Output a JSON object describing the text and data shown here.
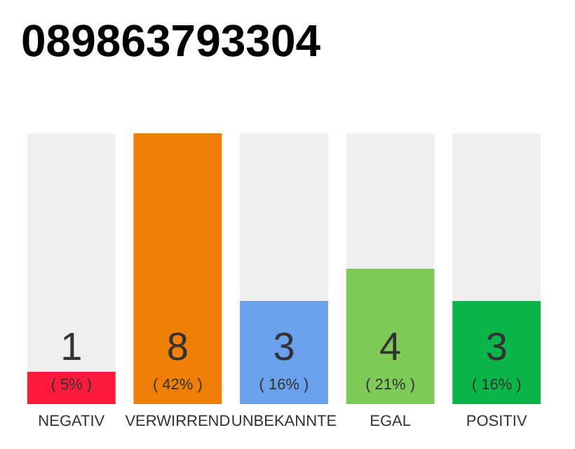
{
  "chart_data": {
    "type": "bar",
    "title": "089863793304",
    "categories": [
      "NEGATIV",
      "VERWIRREND",
      "UNBEKANNTE",
      "EGAL",
      "POSITIV"
    ],
    "values": [
      5,
      42,
      16,
      21,
      16
    ],
    "colors": [
      "#ff1a3c",
      "#f07f09",
      "#6aa0ec",
      "#7ecb5a",
      "#0bb54a"
    ],
    "value_labels": [
      "( 5% )",
      "( 42% )",
      "( 16% )",
      "( 21% )",
      "( 16% )"
    ],
    "annotations": [
      "1",
      "8",
      "3",
      "4",
      "3"
    ],
    "tick_labels": "x"
  }
}
